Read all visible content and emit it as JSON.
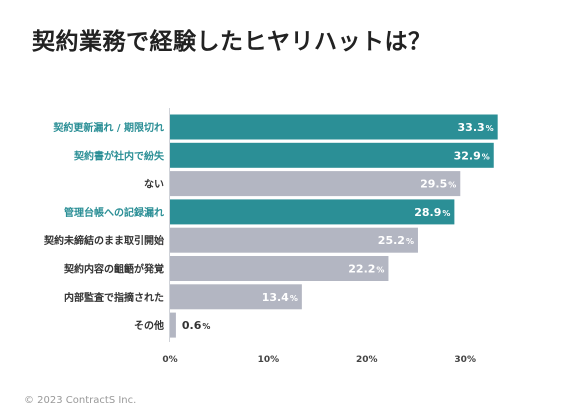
{
  "title": "契約業務で経験したヒヤリハットは？",
  "copyright": "© 2023 ContractS Inc.",
  "colors": {
    "highlight": "#2b8f96",
    "neutral": "#b3b6c2",
    "highlight_text": "#2b8f96",
    "neutral_text": "#333333",
    "value_text_inside": "#ffffff",
    "value_text_outside": "#333333"
  },
  "chart_data": {
    "type": "bar",
    "orientation": "horizontal",
    "categories": [
      "契約更新漏れ / 期限切れ",
      "契約書が社内で紛失",
      "ない",
      "管理台帳への記録漏れ",
      "契約未締結のまま取引開始",
      "契約内容の齟齬が発覚",
      "内部監査で指摘された",
      "その他"
    ],
    "values": [
      33.3,
      32.9,
      29.5,
      28.9,
      25.2,
      22.2,
      13.4,
      0.6
    ],
    "value_labels": [
      "33.3",
      "32.9",
      "29.5",
      "28.9",
      "25.2",
      "22.2",
      "13.4",
      "0.6"
    ],
    "unit": "%",
    "highlighted": [
      true,
      true,
      false,
      true,
      false,
      false,
      false,
      false
    ],
    "xlim": [
      0,
      35
    ],
    "ticks": [
      0,
      10,
      20,
      30
    ],
    "tick_labels": [
      "0%",
      "10%",
      "20%",
      "30%"
    ],
    "grid": false
  }
}
